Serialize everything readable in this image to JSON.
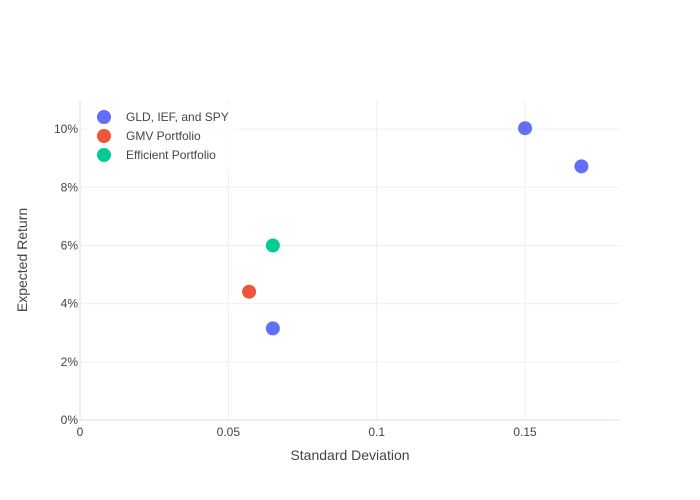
{
  "chart_data": {
    "type": "scatter",
    "title": "",
    "xlabel": "Standard Deviation",
    "ylabel": "Expected Return",
    "xlim": [
      0,
      0.182
    ],
    "ylim": [
      0,
      0.11
    ],
    "x_ticks": [
      0,
      0.05,
      0.1,
      0.15
    ],
    "x_tick_labels": [
      "0",
      "0.05",
      "0.1",
      "0.15"
    ],
    "y_ticks": [
      0,
      0.02,
      0.04,
      0.06,
      0.08,
      0.1
    ],
    "y_tick_labels": [
      "0%",
      "2%",
      "4%",
      "6%",
      "8%",
      "10%"
    ],
    "grid": true,
    "legend_position": "top-left",
    "series": [
      {
        "name": "GLD, IEF, and SPY",
        "color": "#636efa",
        "points": [
          {
            "x": 0.15,
            "y": 0.1003
          },
          {
            "x": 0.169,
            "y": 0.0872
          },
          {
            "x": 0.065,
            "y": 0.0315
          }
        ]
      },
      {
        "name": "GMV Portfolio",
        "color": "#ef553b",
        "points": [
          {
            "x": 0.057,
            "y": 0.0441
          }
        ]
      },
      {
        "name": "Efficient Portfolio",
        "color": "#00cc96",
        "points": [
          {
            "x": 0.065,
            "y": 0.06
          }
        ]
      }
    ]
  }
}
